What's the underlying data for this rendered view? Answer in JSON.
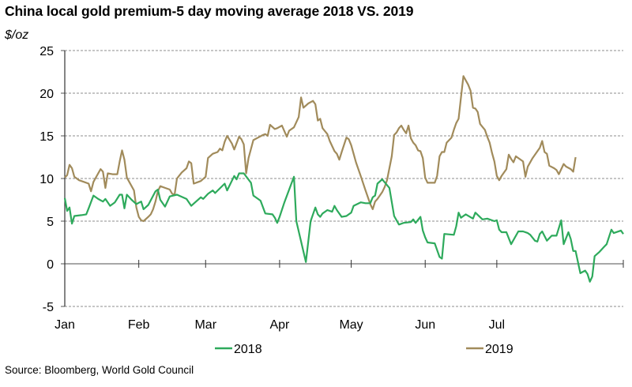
{
  "chart_data": {
    "type": "line",
    "title": "China local gold premium-5 day moving average 2018 VS. 2019",
    "ylabel": "$/oz",
    "xlabel": "",
    "ylim": [
      -5,
      25
    ],
    "yticks": [
      -5,
      0,
      5,
      10,
      15,
      20,
      25
    ],
    "ytick_labels": [
      "-5",
      "0",
      "5",
      "10",
      "15",
      "20",
      "25"
    ],
    "xlim_days": [
      0,
      212
    ],
    "xticks": [
      {
        "label": "Jan",
        "day": 0
      },
      {
        "label": "Feb",
        "day": 31
      },
      {
        "label": "Mar",
        "day": 59
      },
      {
        "label": "Apr",
        "day": 90
      },
      {
        "label": "May",
        "day": 120
      },
      {
        "label": "Jun",
        "day": 151
      },
      {
        "label": "Jul",
        "day": 181
      }
    ],
    "grid": "horizontal-dashed",
    "legend": "bottom",
    "x_unit": "day of year (0 = Jan 1)",
    "series": [
      {
        "name": "2018",
        "color": "#2eaa5c",
        "points": [
          [
            0,
            7.7
          ],
          [
            1,
            6.2
          ],
          [
            2,
            6.6
          ],
          [
            3,
            4.7
          ],
          [
            4,
            5.6
          ],
          [
            7,
            5.7
          ],
          [
            9,
            5.8
          ],
          [
            10,
            6.5
          ],
          [
            12,
            8.0
          ],
          [
            14,
            7.6
          ],
          [
            16,
            7.3
          ],
          [
            17,
            7.6
          ],
          [
            19,
            6.8
          ],
          [
            21,
            7.2
          ],
          [
            23,
            8.1
          ],
          [
            24,
            8.1
          ],
          [
            25,
            6.5
          ],
          [
            26,
            8.1
          ],
          [
            28,
            7.5
          ],
          [
            30,
            7.0
          ],
          [
            32,
            7.3
          ],
          [
            33,
            6.4
          ],
          [
            35,
            6.9
          ],
          [
            38,
            8.5
          ],
          [
            39,
            8.7
          ],
          [
            40,
            7.5
          ],
          [
            42,
            6.7
          ],
          [
            44,
            7.9
          ],
          [
            47,
            8.1
          ],
          [
            51,
            7.6
          ],
          [
            53,
            6.8
          ],
          [
            57,
            7.8
          ],
          [
            58,
            7.6
          ],
          [
            60,
            8.2
          ],
          [
            62,
            8.6
          ],
          [
            63,
            8.3
          ],
          [
            67,
            9.4
          ],
          [
            68,
            8.6
          ],
          [
            71,
            10.3
          ],
          [
            72,
            9.9
          ],
          [
            73,
            10.6
          ],
          [
            75,
            10.6
          ],
          [
            78,
            9.5
          ],
          [
            79,
            8.0
          ],
          [
            81,
            7.6
          ],
          [
            82,
            7.4
          ],
          [
            84,
            5.9
          ],
          [
            87,
            5.8
          ],
          [
            88,
            5.4
          ],
          [
            89,
            4.8
          ],
          [
            90,
            5.5
          ],
          [
            92,
            7.2
          ],
          [
            96,
            10.2
          ],
          [
            97,
            5.0
          ],
          [
            101,
            0.2
          ],
          [
            103,
            5.0
          ],
          [
            105,
            6.6
          ],
          [
            106,
            5.8
          ],
          [
            107,
            5.5
          ],
          [
            108,
            5.9
          ],
          [
            110,
            6.3
          ],
          [
            112,
            6.1
          ],
          [
            113,
            6.8
          ],
          [
            114,
            6.3
          ],
          [
            116,
            5.5
          ],
          [
            118,
            5.6
          ],
          [
            120,
            6.0
          ],
          [
            121,
            6.8
          ],
          [
            124,
            7.2
          ],
          [
            126,
            7.1
          ],
          [
            128,
            7.1
          ],
          [
            129,
            7.8
          ],
          [
            130,
            8.0
          ],
          [
            131,
            9.4
          ],
          [
            133,
            9.9
          ],
          [
            136,
            8.9
          ],
          [
            138,
            5.6
          ],
          [
            140,
            4.6
          ],
          [
            142,
            4.8
          ],
          [
            145,
            4.9
          ],
          [
            146,
            5.2
          ],
          [
            147,
            4.8
          ],
          [
            149,
            5.5
          ],
          [
            150,
            3.9
          ],
          [
            151,
            3.1
          ],
          [
            152,
            2.5
          ],
          [
            155,
            2.4
          ],
          [
            157,
            0.8
          ],
          [
            158,
            0.6
          ],
          [
            159,
            3.5
          ],
          [
            163,
            3.4
          ],
          [
            164,
            4.4
          ],
          [
            165,
            6.0
          ],
          [
            166,
            5.4
          ],
          [
            168,
            5.8
          ],
          [
            171,
            5.3
          ],
          [
            172,
            6.0
          ],
          [
            175,
            5.2
          ],
          [
            177,
            5.3
          ],
          [
            180,
            5.0
          ],
          [
            181,
            5.1
          ],
          [
            182,
            4.0
          ],
          [
            183,
            3.7
          ],
          [
            185,
            3.7
          ],
          [
            187,
            2.3
          ],
          [
            190,
            3.8
          ],
          [
            192,
            3.8
          ],
          [
            194,
            3.6
          ],
          [
            195,
            3.4
          ],
          [
            197,
            2.7
          ],
          [
            198,
            2.6
          ],
          [
            199,
            3.5
          ],
          [
            200,
            3.8
          ],
          [
            202,
            2.7
          ],
          [
            204,
            3.3
          ],
          [
            206,
            3.3
          ],
          [
            208,
            5.1
          ],
          [
            209,
            2.3
          ],
          [
            211,
            3.7
          ],
          [
            212,
            2.9
          ],
          [
            213,
            1.5
          ],
          [
            214,
            1.5
          ],
          [
            216,
            -1.1
          ],
          [
            218,
            -0.8
          ],
          [
            219,
            -1.2
          ],
          [
            220,
            -2.1
          ],
          [
            221,
            -1.5
          ],
          [
            222,
            0.9
          ],
          [
            224,
            1.4
          ],
          [
            226,
            2.0
          ],
          [
            227,
            2.3
          ],
          [
            229,
            4.0
          ],
          [
            230,
            3.6
          ],
          [
            233,
            3.9
          ],
          [
            234,
            3.5
          ]
        ]
      },
      {
        "name": "2019",
        "color": "#a18b5b",
        "points": [
          [
            0,
            10.1
          ],
          [
            1,
            10.4
          ],
          [
            2,
            11.6
          ],
          [
            3,
            11.2
          ],
          [
            4,
            10.2
          ],
          [
            6,
            9.8
          ],
          [
            8,
            9.6
          ],
          [
            10,
            9.4
          ],
          [
            11,
            8.5
          ],
          [
            12,
            9.6
          ],
          [
            13,
            10.1
          ],
          [
            15,
            11.1
          ],
          [
            16,
            10.8
          ],
          [
            17,
            8.9
          ],
          [
            18,
            10.6
          ],
          [
            20,
            10.5
          ],
          [
            22,
            10.5
          ],
          [
            23,
            12.0
          ],
          [
            24,
            13.3
          ],
          [
            25,
            12.2
          ],
          [
            26,
            10.1
          ],
          [
            27,
            9.6
          ],
          [
            29,
            8.6
          ],
          [
            30,
            6.6
          ],
          [
            31,
            5.5
          ],
          [
            32,
            5.1
          ],
          [
            33,
            5.0
          ],
          [
            35,
            5.5
          ],
          [
            36,
            5.8
          ],
          [
            37,
            6.4
          ],
          [
            38,
            7.3
          ],
          [
            39,
            8.5
          ],
          [
            40,
            9.1
          ],
          [
            42,
            8.9
          ],
          [
            44,
            8.7
          ],
          [
            45,
            8.2
          ],
          [
            46,
            8.1
          ],
          [
            47,
            10.0
          ],
          [
            49,
            10.7
          ],
          [
            51,
            11.2
          ],
          [
            52,
            12.0
          ],
          [
            53,
            11.8
          ],
          [
            54,
            9.4
          ],
          [
            56,
            9.6
          ],
          [
            57,
            9.7
          ],
          [
            59,
            10.2
          ],
          [
            60,
            12.4
          ],
          [
            62,
            12.9
          ],
          [
            64,
            13.1
          ],
          [
            65,
            13.5
          ],
          [
            66,
            13.3
          ],
          [
            67,
            14.3
          ],
          [
            68,
            15.0
          ],
          [
            70,
            14.1
          ],
          [
            71,
            13.4
          ],
          [
            73,
            14.9
          ],
          [
            74,
            14.6
          ],
          [
            75,
            14.0
          ],
          [
            76,
            10.6
          ],
          [
            77,
            12.4
          ],
          [
            79,
            14.5
          ],
          [
            81,
            14.8
          ],
          [
            83,
            15.1
          ],
          [
            84,
            15.2
          ],
          [
            85,
            15.0
          ],
          [
            86,
            16.3
          ],
          [
            88,
            15.8
          ],
          [
            89,
            15.9
          ],
          [
            91,
            16.2
          ],
          [
            93,
            14.9
          ],
          [
            94,
            15.6
          ],
          [
            96,
            16.0
          ],
          [
            97,
            16.6
          ],
          [
            98,
            17.2
          ],
          [
            99,
            19.5
          ],
          [
            100,
            18.3
          ],
          [
            102,
            18.8
          ],
          [
            104,
            19.1
          ],
          [
            105,
            18.7
          ],
          [
            106,
            16.8
          ],
          [
            107,
            17.0
          ],
          [
            108,
            15.9
          ],
          [
            110,
            15.2
          ],
          [
            111,
            14.4
          ],
          [
            113,
            13.2
          ],
          [
            114,
            12.9
          ],
          [
            115,
            12.2
          ],
          [
            116,
            13.1
          ],
          [
            118,
            14.8
          ],
          [
            119,
            14.6
          ],
          [
            120,
            13.9
          ],
          [
            121,
            12.9
          ],
          [
            122,
            11.9
          ],
          [
            124,
            10.3
          ],
          [
            126,
            8.6
          ],
          [
            128,
            7.0
          ],
          [
            129,
            6.4
          ],
          [
            130,
            7.3
          ],
          [
            131,
            7.6
          ],
          [
            133,
            8.4
          ],
          [
            134,
            9.0
          ],
          [
            135,
            9.8
          ],
          [
            136,
            11.2
          ],
          [
            137,
            12.6
          ],
          [
            138,
            15.1
          ],
          [
            139,
            15.4
          ],
          [
            140,
            15.9
          ],
          [
            141,
            16.2
          ],
          [
            142,
            15.7
          ],
          [
            143,
            15.3
          ],
          [
            144,
            16.2
          ],
          [
            145,
            14.7
          ],
          [
            146,
            14.2
          ],
          [
            147,
            13.9
          ],
          [
            148,
            13.3
          ],
          [
            149,
            13.2
          ],
          [
            150,
            12.4
          ],
          [
            151,
            10.1
          ],
          [
            152,
            9.5
          ],
          [
            155,
            9.5
          ],
          [
            156,
            10.3
          ],
          [
            157,
            12.6
          ],
          [
            158,
            13.1
          ],
          [
            159,
            13.1
          ],
          [
            160,
            14.2
          ],
          [
            162,
            14.8
          ],
          [
            163,
            15.7
          ],
          [
            164,
            16.5
          ],
          [
            165,
            17.0
          ],
          [
            166,
            19.5
          ],
          [
            167,
            22.0
          ],
          [
            169,
            21.0
          ],
          [
            170,
            20.3
          ],
          [
            171,
            18.3
          ],
          [
            172,
            18.2
          ],
          [
            173,
            17.8
          ],
          [
            174,
            16.4
          ],
          [
            176,
            15.7
          ],
          [
            177,
            14.9
          ],
          [
            178,
            14.2
          ],
          [
            179,
            13.0
          ],
          [
            180,
            12.0
          ],
          [
            181,
            10.3
          ],
          [
            182,
            9.8
          ],
          [
            183,
            10.3
          ],
          [
            185,
            11.1
          ],
          [
            186,
            12.8
          ],
          [
            187,
            12.3
          ],
          [
            188,
            11.9
          ],
          [
            189,
            12.6
          ],
          [
            190,
            12.4
          ],
          [
            192,
            12.0
          ],
          [
            193,
            10.2
          ],
          [
            194,
            11.4
          ],
          [
            196,
            12.4
          ],
          [
            199,
            13.6
          ],
          [
            200,
            14.4
          ],
          [
            201,
            13.1
          ],
          [
            202,
            12.9
          ],
          [
            203,
            11.5
          ],
          [
            205,
            11.2
          ],
          [
            206,
            11.0
          ],
          [
            207,
            10.5
          ],
          [
            209,
            11.7
          ],
          [
            210,
            11.4
          ],
          [
            212,
            11.1
          ],
          [
            213,
            10.8
          ],
          [
            214,
            12.5
          ]
        ]
      }
    ]
  },
  "source": "Source: Bloomberg, World Gold Council"
}
